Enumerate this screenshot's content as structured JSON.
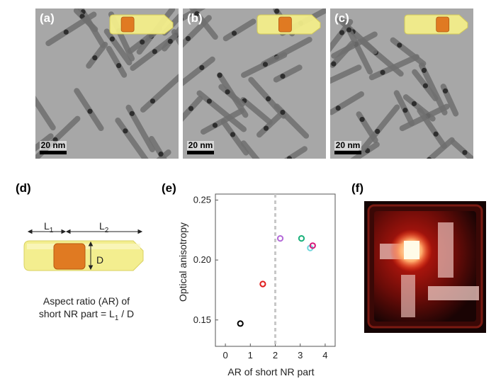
{
  "panels": {
    "a": {
      "label": "(a)",
      "scale": "20 nm",
      "core_pos": 0.18
    },
    "b": {
      "label": "(b)",
      "scale": "20 nm",
      "core_pos": 0.35
    },
    "c": {
      "label": "(c)",
      "scale": "20 nm",
      "core_pos": 0.52
    },
    "d": {
      "label": "(d)",
      "L1": "L",
      "L1_sub": "1",
      "L2": "L",
      "L2_sub": "2",
      "D": "D",
      "caption_line1": "Aspect ratio (AR) of",
      "caption_line2_prefix": "short NR part = L",
      "caption_line2_sub": "1",
      "caption_line2_suffix": " / D"
    },
    "e": {
      "label": "(e)"
    },
    "f": {
      "label": "(f)"
    }
  },
  "colors": {
    "rod_fill": "#f3ee8a",
    "core_fill": "#e07a22",
    "glow": "#ff2a10"
  },
  "chart_data": {
    "type": "scatter",
    "xlabel": "AR of short NR part",
    "ylabel": "Optical anisotropy",
    "xlim": [
      -0.4,
      4.4
    ],
    "ylim": [
      0.128,
      0.255
    ],
    "xticks": [
      0,
      1,
      2,
      3,
      4
    ],
    "yticks": [
      0.15,
      0.2,
      0.25
    ],
    "yticklabels": [
      "0.15",
      "0.20",
      "0.25"
    ],
    "vline_x": 2.0,
    "points": [
      {
        "x": 0.6,
        "y": 0.147,
        "color": "#000000"
      },
      {
        "x": 1.5,
        "y": 0.18,
        "color": "#e01c1c"
      },
      {
        "x": 2.2,
        "y": 0.218,
        "color": "#b46ad8"
      },
      {
        "x": 3.05,
        "y": 0.218,
        "color": "#19b07a"
      },
      {
        "x": 3.4,
        "y": 0.21,
        "color": "#6fd6dc"
      },
      {
        "x": 3.5,
        "y": 0.212,
        "color": "#d6197a"
      }
    ]
  }
}
